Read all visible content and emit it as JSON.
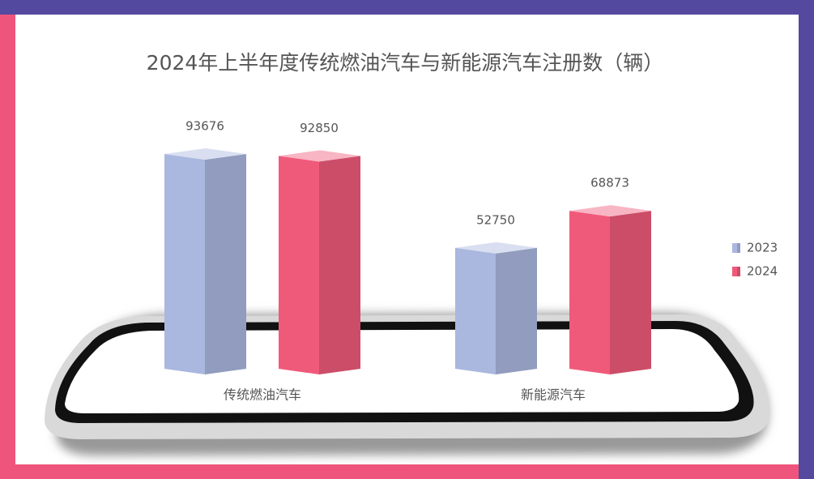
{
  "chart_data": {
    "type": "bar3d",
    "title": "2024年上半年度传统燃油汽车与新能源汽车注册数（辆）",
    "categories": [
      "传统燃油汽车",
      "新能源汽车"
    ],
    "series": [
      {
        "name": "2023",
        "color": "#aab8df",
        "values": [
          93676,
          52750
        ]
      },
      {
        "name": "2024",
        "color": "#f05a7a",
        "values": [
          92850,
          68873
        ]
      }
    ],
    "legend": "right"
  }
}
